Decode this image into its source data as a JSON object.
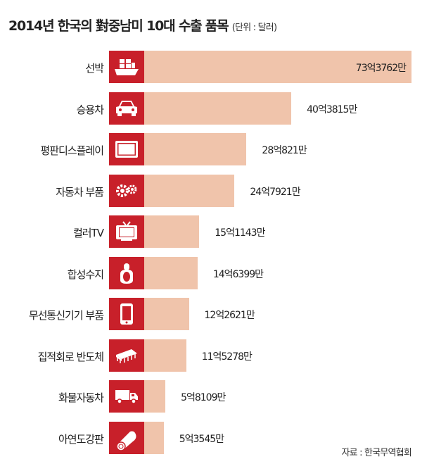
{
  "title": "2014년 한국의 對중남미 10대 수출 품목",
  "unit": "(단위 : 달러)",
  "source": "자료 : 한국무역협회",
  "chart_data": {
    "type": "bar",
    "orientation": "horizontal",
    "title": "2014년 한국의 對중남미 10대 수출 품목",
    "unit": "(단위 : 달러)",
    "categories": [
      "선박",
      "승용차",
      "평판디스플레이",
      "자동차 부품",
      "컬러TV",
      "합성수지",
      "무선통신기기 부품",
      "집적회로 반도체",
      "화물자동차",
      "아연도강판"
    ],
    "values": [
      7337620000,
      4038150000,
      2808210000,
      2479210000,
      1511430000,
      1463990000,
      1226210000,
      1152780000,
      581090000,
      535450000
    ],
    "value_labels": [
      "73억3762만",
      "40억3815만",
      "28억821만",
      "24억7921만",
      "15억1143만",
      "14억6399만",
      "12억2621만",
      "11억5278만",
      "5억8109만",
      "5억3545만"
    ],
    "icons": [
      "ship-icon",
      "car-icon",
      "flat-display-icon",
      "gears-icon",
      "tv-icon",
      "resin-icon",
      "smartphone-icon",
      "chip-icon",
      "truck-icon",
      "steel-roll-icon"
    ],
    "colors": {
      "icon_bg": "#c8202a",
      "bar": "#f0c4ab"
    }
  }
}
